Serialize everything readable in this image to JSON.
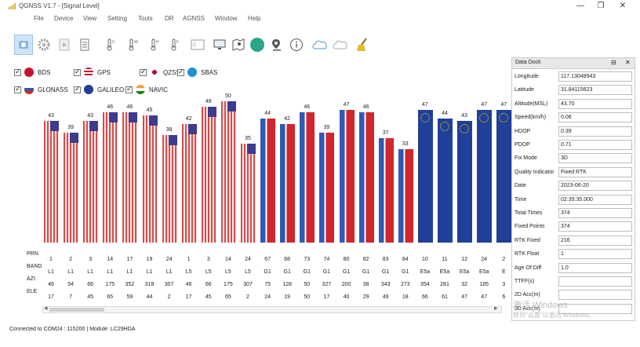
{
  "window": {
    "title": "QGNSS V1.7 - [Signal Level]",
    "minimize": "—",
    "restore": "❐",
    "close": "✕"
  },
  "menu": [
    "File",
    "Device",
    "View",
    "Setting",
    "Tools",
    "DR",
    "AGNSS",
    "Window",
    "Help"
  ],
  "toolbar_icons": [
    "device-icon",
    "settings-gear-icon",
    "play-icon",
    "log-icon",
    "thermometer-c-icon",
    "thermometer-w-icon",
    "thermometer-h-icon",
    "thermometer-f-icon",
    "console-c-icon",
    "monitor-icon",
    "map-icon",
    "globe-icon",
    "pin-icon",
    "info-icon",
    "cloud-qlocate-icon",
    "cloud-cors-icon",
    "clean-icon"
  ],
  "constellations": [
    {
      "label": "BDS",
      "color": "#c8102e",
      "checked": true
    },
    {
      "label": "GPS",
      "color": "#3c5aa8",
      "checked": true
    },
    {
      "label": "QZSS",
      "color": "#bc002d",
      "checked": true
    },
    {
      "label": "SBAS",
      "color": "#1e90d6",
      "checked": true
    },
    {
      "label": "GLONASS",
      "color": "#3a57a6",
      "checked": true
    },
    {
      "label": "GALILEO",
      "color": "#1f3f99",
      "checked": true
    },
    {
      "label": "NAVIC",
      "color": "#ff9933",
      "checked": true
    }
  ],
  "row_labels": {
    "prn": "PRN",
    "band": "BAND",
    "azi": "AZI",
    "ele": "ELE"
  },
  "chart_data": {
    "type": "bar",
    "ylim": [
      0,
      60
    ],
    "satellites": [
      {
        "prn": "1",
        "band": "L1",
        "azi": "46",
        "ele": "17",
        "cn0": 43,
        "system": "GPS"
      },
      {
        "prn": "2",
        "band": "L1",
        "azi": "54",
        "ele": "7",
        "cn0": 39,
        "system": "GPS"
      },
      {
        "prn": "3",
        "band": "L1",
        "azi": "66",
        "ele": "45",
        "cn0": 43,
        "system": "GPS"
      },
      {
        "prn": "14",
        "band": "L1",
        "azi": "175",
        "ele": "65",
        "cn0": 46,
        "system": "GPS"
      },
      {
        "prn": "17",
        "band": "L1",
        "azi": "352",
        "ele": "59",
        "cn0": 46,
        "system": "GPS"
      },
      {
        "prn": "19",
        "band": "L1",
        "azi": "318",
        "ele": "44",
        "cn0": 45,
        "system": "GPS"
      },
      {
        "prn": "24",
        "band": "L1",
        "azi": "307",
        "ele": "2",
        "cn0": 38,
        "system": "GPS"
      },
      {
        "prn": "1",
        "band": "L5",
        "azi": "46",
        "ele": "17",
        "cn0": 42,
        "system": "GPS"
      },
      {
        "prn": "3",
        "band": "L5",
        "azi": "66",
        "ele": "45",
        "cn0": 48,
        "system": "GPS"
      },
      {
        "prn": "14",
        "band": "L5",
        "azi": "175",
        "ele": "65",
        "cn0": 50,
        "system": "GPS"
      },
      {
        "prn": "24",
        "band": "L5",
        "azi": "307",
        "ele": "2",
        "cn0": 35,
        "system": "GPS"
      },
      {
        "prn": "67",
        "band": "G1",
        "azi": "75",
        "ele": "24",
        "cn0": 44,
        "system": "GLONASS"
      },
      {
        "prn": "68",
        "band": "G1",
        "azi": "128",
        "ele": "19",
        "cn0": 42,
        "system": "GLONASS"
      },
      {
        "prn": "73",
        "band": "G1",
        "azi": "50",
        "ele": "50",
        "cn0": 46,
        "system": "GLONASS"
      },
      {
        "prn": "74",
        "band": "G1",
        "azi": "327",
        "ele": "17",
        "cn0": 39,
        "system": "GLONASS"
      },
      {
        "prn": "80",
        "band": "G1",
        "azi": "200",
        "ele": "40",
        "cn0": 47,
        "system": "GLONASS"
      },
      {
        "prn": "82",
        "band": "G1",
        "azi": "38",
        "ele": "29",
        "cn0": 46,
        "system": "GLONASS"
      },
      {
        "prn": "83",
        "band": "G1",
        "azi": "343",
        "ele": "49",
        "cn0": 37,
        "system": "GLONASS"
      },
      {
        "prn": "84",
        "band": "G1",
        "azi": "273",
        "ele": "18",
        "cn0": 33,
        "system": "GLONASS"
      },
      {
        "prn": "10",
        "band": "E5a",
        "azi": "354",
        "ele": "66",
        "cn0": 47,
        "system": "GALILEO"
      },
      {
        "prn": "11",
        "band": "E5a",
        "azi": "281",
        "ele": "61",
        "cn0": 44,
        "system": "GALILEO"
      },
      {
        "prn": "12",
        "band": "E5a",
        "azi": "32",
        "ele": "47",
        "cn0": 43,
        "system": "GALILEO"
      },
      {
        "prn": "24",
        "band": "E5a",
        "azi": "185",
        "ele": "47",
        "cn0": 47,
        "system": "GALILEO"
      },
      {
        "prn": "2",
        "band": "E",
        "azi": "3",
        "ele": "6",
        "cn0": 47,
        "system": "GALILEO"
      }
    ]
  },
  "scroll": {
    "left_arrow": "◂",
    "right_arrow": "▸"
  },
  "status_bar": "Connected to COM24 : 115200 | Module: LC29HDA",
  "data_dock": {
    "title": "Data Dock",
    "pin": "⊟",
    "close": "✕",
    "rows": [
      {
        "label": "Longitude",
        "value": "117.13048943"
      },
      {
        "label": "Latitude",
        "value": "31.84115623"
      },
      {
        "label": "Altitude(MSL)",
        "value": "43.70"
      },
      {
        "label": "Speed(km/h)",
        "value": "0.06"
      },
      {
        "label": "HDOP",
        "value": "0.39"
      },
      {
        "label": "PDOP",
        "value": "0.71"
      },
      {
        "label": "Fix Mode",
        "value": "3D"
      },
      {
        "label": "Quality Indicator",
        "value": "Fixed RTK"
      },
      {
        "label": "Date",
        "value": "2023-06-20"
      },
      {
        "label": "Time",
        "value": "02:35:35.000"
      },
      {
        "label": "Total Times",
        "value": "374"
      },
      {
        "label": "Fixed Points",
        "value": "374"
      },
      {
        "label": "RTK Fixed",
        "value": "216"
      },
      {
        "label": "RTK Float",
        "value": "1"
      },
      {
        "label": "Age Of Diff",
        "value": "1.0"
      },
      {
        "label": "TTFF(s)",
        "value": ""
      },
      {
        "label": "2D Acc(m)",
        "value": ""
      },
      {
        "label": "3D Acc(m)",
        "value": ""
      }
    ]
  },
  "watermark": {
    "line1": "激活 Windows",
    "line2": "转到\"设置\"以激活 Windows。"
  }
}
